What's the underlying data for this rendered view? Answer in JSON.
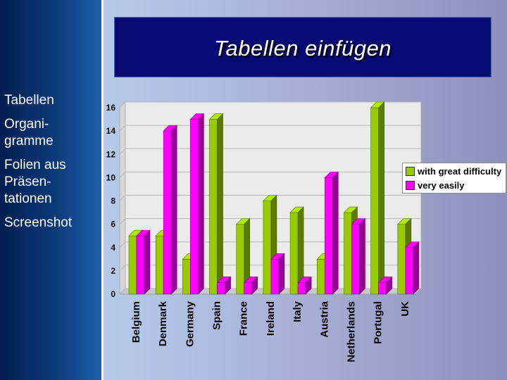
{
  "slide": {
    "title": "Tabellen einfügen",
    "menu": [
      "Tabellen",
      "Organi-\ngramme",
      "Folien aus\nPräsen-\ntationen",
      "Screenshot"
    ]
  },
  "colors": {
    "green": "#99cc00",
    "magenta": "#ff00ff",
    "title_bg": "#060a72"
  },
  "chart_data": {
    "type": "bar",
    "categories": [
      "Belgium",
      "Denmark",
      "Germany",
      "Spain",
      "France",
      "Ireland",
      "Italy",
      "Austria",
      "Netherlands",
      "Portugal",
      "UK"
    ],
    "series": [
      {
        "name": "with great difficulty",
        "values": [
          5,
          5,
          3,
          15,
          6,
          8,
          7,
          3,
          7,
          16,
          6
        ]
      },
      {
        "name": "very easily",
        "values": [
          5,
          14,
          15,
          1,
          1,
          3,
          1,
          10,
          6,
          1,
          4
        ]
      }
    ],
    "ylim": [
      0,
      16
    ],
    "yticks": [
      0,
      2,
      4,
      6,
      8,
      10,
      12,
      14,
      16
    ],
    "grid": true,
    "legend": "right"
  }
}
